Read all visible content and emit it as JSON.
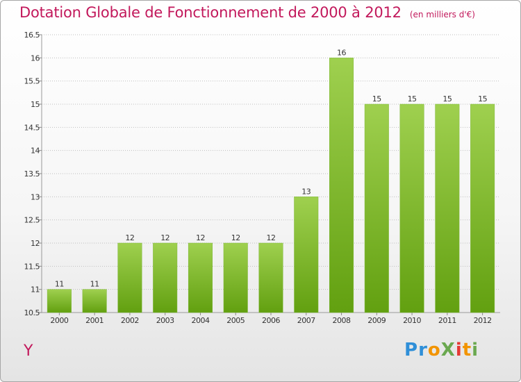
{
  "title": "Dotation Globale de Fonctionnement de 2000 à 2012",
  "unit": "(en milliers d'€)",
  "commune": "Y",
  "logo": {
    "text": "ProXiti",
    "letters": [
      {
        "ch": "P",
        "color": "#2f8fd8"
      },
      {
        "ch": "r",
        "color": "#2f8fd8"
      },
      {
        "ch": "o",
        "color": "#f29400"
      },
      {
        "ch": "X",
        "color": "#6aa84f"
      },
      {
        "ch": "i",
        "color": "#e53935"
      },
      {
        "ch": "t",
        "color": "#f29400"
      },
      {
        "ch": "i",
        "color": "#6aa84f"
      }
    ]
  },
  "colors": {
    "title": "#c2185b",
    "bar_top": "#9fd04f",
    "bar_bottom": "#62a010",
    "grid": "#bfbfbf"
  },
  "chart_data": {
    "type": "bar",
    "categories": [
      "2000",
      "2001",
      "2002",
      "2003",
      "2004",
      "2005",
      "2006",
      "2007",
      "2008",
      "2009",
      "2010",
      "2011",
      "2012"
    ],
    "values": [
      11,
      11,
      12,
      12,
      12,
      12,
      12,
      13,
      16,
      15,
      15,
      15,
      15
    ],
    "data_labels": [
      "11",
      "11",
      "12",
      "12",
      "12",
      "12",
      "12",
      "13",
      "16",
      "15",
      "15",
      "15",
      "15"
    ],
    "ylim": [
      10.5,
      16.5
    ],
    "yticks": [
      "10.5",
      "11",
      "11.5",
      "12",
      "12.5",
      "13",
      "13.5",
      "14",
      "14.5",
      "15",
      "15.5",
      "16",
      "16.5"
    ],
    "grid": true,
    "legend": "none"
  }
}
